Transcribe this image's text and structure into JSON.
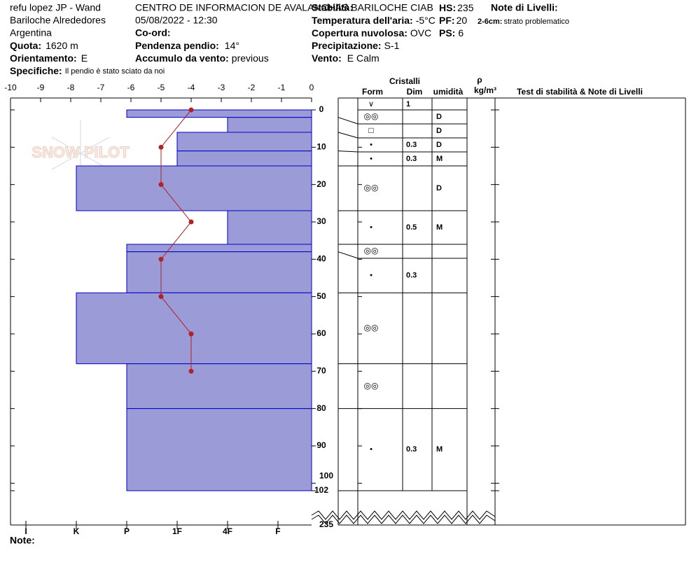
{
  "header": {
    "location": "refu lopez JP - Wand",
    "region": "Bariloche Alrededores",
    "country": "Argentina",
    "elevation_label": "Quota:",
    "elevation": "1620 m",
    "aspect_label": "Orientamento:",
    "aspect": "E",
    "specifics_label": "Specifiche:",
    "specifics": "Il pendio è stato sciato da noi",
    "organization": "CENTRO DE INFORMACION DE AVALANCHAS BARILOCHE CIAB",
    "datetime": "05/08/2022 - 12:30",
    "coord_label": "Co-ord:",
    "slope_label": "Pendenza pendio:",
    "slope": "14°",
    "wind_loading_label": "Accumulo da vento:",
    "wind_loading": "previous",
    "stability_label": "Stabilità:",
    "air_temp_label": "Temperatura dell'aria:",
    "air_temp": "-5°C",
    "sky_label": "Copertura nuvolosa:",
    "sky": "OVC",
    "precip_label": "Precipitazione:",
    "precip": "S-1",
    "wind_label": "Vento:",
    "wind": "E Calm",
    "hs_label": "HS:",
    "hs": "235",
    "pf_label": "PF:",
    "pf": "20",
    "ps_label": "PS:",
    "ps": "6",
    "layer_notes_label": "Note di Livelli:",
    "layer_note_depth": "2-6cm:",
    "layer_note": "strato problematico",
    "notes_label": "Note:",
    "watermark": "SNOW PILOT"
  },
  "table_header": {
    "crystals": "Cristalli",
    "form": "Form",
    "size": "Dim",
    "moisture": "umidità",
    "rho": "ρ",
    "rho_unit": "kg/m³",
    "tests": "Test di stabilità & Note di Livelli"
  },
  "chart_data": {
    "type": "snow-profile",
    "temperature": {
      "xlim": [
        -10,
        0
      ],
      "xticks": [
        -10,
        -9,
        -8,
        -7,
        -6,
        -5,
        -4,
        -3,
        -2,
        -1,
        0
      ],
      "depths": [
        0,
        10,
        20,
        30,
        40,
        50,
        60,
        70
      ],
      "values": [
        -4,
        -5,
        -5,
        -4,
        -5,
        -5,
        -4,
        -4
      ],
      "color": "#b22222"
    },
    "hardness": {
      "lim": [
        0.333,
        6.306
      ],
      "ticks": [
        {
          "value": 6,
          "label": "I"
        },
        {
          "value": 5,
          "label": "K"
        },
        {
          "value": 4,
          "label": "P"
        },
        {
          "value": 3,
          "label": "1F"
        },
        {
          "value": 2,
          "label": "4F"
        },
        {
          "value": 1,
          "label": "F"
        }
      ],
      "color": "#9b9bd8",
      "edge_color": "#0000c8"
    },
    "depth": {
      "lim": [
        0,
        102
      ],
      "ticks": [
        0,
        10,
        20,
        30,
        40,
        50,
        60,
        70,
        80,
        90,
        100,
        102
      ],
      "total": 235
    },
    "surface": {
      "form": "∨",
      "size": 1
    },
    "layers": [
      {
        "top": 0,
        "bottom": 2,
        "hardness": 4,
        "form": "◎◎",
        "moisture": "D"
      },
      {
        "top": 2,
        "bottom": 6,
        "hardness": 2,
        "form": "□",
        "moisture": "D"
      },
      {
        "top": 6,
        "bottom": 11,
        "hardness": 3,
        "form": "•",
        "size": 0.3,
        "moisture": "D"
      },
      {
        "top": 11,
        "bottom": 15,
        "hardness": 3,
        "form": "•",
        "size": 0.3,
        "moisture": "M"
      },
      {
        "top": 15,
        "bottom": 27,
        "hardness": 5,
        "form": "◎◎",
        "moisture": "D"
      },
      {
        "top": 27,
        "bottom": 36,
        "hardness": 2,
        "form": "•",
        "size": 0.5,
        "moisture": "M"
      },
      {
        "top": 36,
        "bottom": 38,
        "hardness": 4,
        "form": "◎◎"
      },
      {
        "top": 38,
        "bottom": 49,
        "hardness": 4,
        "form": "•",
        "size": 0.3
      },
      {
        "top": 49,
        "bottom": 68,
        "hardness": 5,
        "form": "◎◎"
      },
      {
        "top": 68,
        "bottom": 80,
        "hardness": 4,
        "form": "◎◎"
      },
      {
        "top": 80,
        "bottom": 102,
        "hardness": 4,
        "form": "•",
        "size": 0.3,
        "moisture": "M"
      }
    ]
  }
}
